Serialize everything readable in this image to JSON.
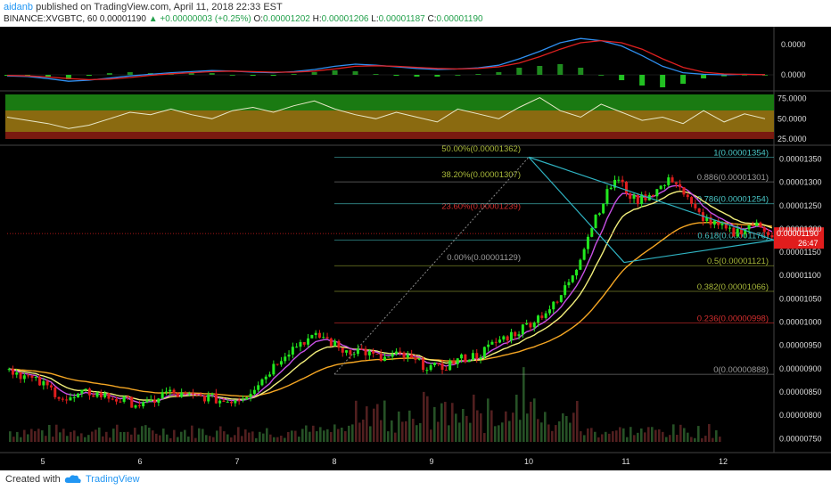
{
  "header": {
    "user": "aidanb",
    "published": "published on TradingView.com, April 11, 2018 22:33 EST",
    "symbol": "BINANCE:XVGBTC, 60",
    "last": "0.00001190",
    "change": "+0.00000003 (+0.25%)",
    "o_label": "O:",
    "o": "0.00001202",
    "h_label": "H:",
    "h": "0.00001206",
    "l_label": "L:",
    "l": "0.00001187",
    "c_label": "C:",
    "c": "0.00001190"
  },
  "footer": {
    "created": "Created with",
    "brand": "TradingView"
  },
  "colors": {
    "bg": "#000000",
    "up": "#22e81f",
    "down": "#e01d1d",
    "fib_teal": "#49c7c7",
    "fib_olive": "#a8b83a",
    "fib_red": "#d42f2f",
    "ema_orange": "#f5a623",
    "ema_yellow": "#f2ef7b",
    "ema_purple": "#c850e6",
    "triangle": "#2fb3c2",
    "macd_blue": "#2f8ff0",
    "macd_red": "#e02020",
    "price_tag": "#e01d1d"
  },
  "chart_data": [
    {
      "type": "line",
      "name_panel": "MACD",
      "y_ticks": [
        "0.0000",
        "0.0000"
      ],
      "series": [
        {
          "values": [
            -0.1,
            -0.15,
            -0.35,
            -0.6,
            -0.5,
            -0.3,
            -0.1,
            0.05,
            0.2,
            0.3,
            0.4,
            0.35,
            0.25,
            0.2,
            0.3,
            0.5,
            0.8,
            1.0,
            0.9,
            0.75,
            0.6,
            0.5,
            0.55,
            0.65,
            0.9,
            1.5,
            2.2,
            3.0,
            3.4,
            3.2,
            2.7,
            1.8,
            0.8,
            0.2,
            0.05,
            0.0,
            0.05,
            0.02
          ]
        },
        {
          "values": [
            -0.05,
            -0.1,
            -0.2,
            -0.35,
            -0.45,
            -0.4,
            -0.25,
            -0.05,
            0.1,
            0.2,
            0.3,
            0.35,
            0.3,
            0.25,
            0.25,
            0.35,
            0.55,
            0.8,
            0.85,
            0.8,
            0.7,
            0.6,
            0.55,
            0.6,
            0.75,
            1.1,
            1.7,
            2.4,
            3.0,
            3.2,
            3.0,
            2.4,
            1.5,
            0.7,
            0.25,
            0.08,
            0.04,
            0.02
          ]
        }
      ]
    },
    {
      "type": "line",
      "name_panel": "RSI",
      "y_ticks": [
        "75.0000",
        "50.0000",
        "25.0000"
      ],
      "ylim": [
        25,
        80
      ],
      "values": [
        52,
        48,
        44,
        38,
        42,
        50,
        58,
        55,
        62,
        55,
        50,
        60,
        64,
        58,
        66,
        72,
        62,
        55,
        50,
        58,
        52,
        46,
        62,
        56,
        50,
        64,
        76,
        60,
        52,
        68,
        58,
        48,
        52,
        44,
        60,
        46,
        56,
        50
      ]
    },
    {
      "type": "line",
      "name_panel": "price",
      "y_ticks": [
        "0.00001350",
        "0.00001300",
        "0.00001250",
        "0.00001200",
        "0.00001150",
        "0.00001100",
        "0.00001050",
        "0.00001000",
        "0.00000950",
        "0.00000900",
        "0.00000850",
        "0.00000800",
        "0.00000750"
      ],
      "x_ticks": [
        "5",
        "6",
        "7",
        "8",
        "9",
        "10",
        "11",
        "12"
      ],
      "ylim": [
        7.2e-06,
        1.37e-05
      ],
      "price_label": "0.00001190",
      "countdown": "26:47",
      "fib_levels": [
        {
          "label": "50.00%(0.00001362)",
          "value": 1.362e-05
        },
        {
          "label": "38.20%(0.00001307)",
          "value": 1.307e-05
        },
        {
          "label": "23.60%(0.00001239)",
          "value": 1.239e-05
        },
        {
          "label": "0.00%(0.00001129)",
          "value": 1.129e-05
        },
        {
          "label": "1(0.00001354)",
          "value": 1.354e-05
        },
        {
          "label": "0.886(0.00001301)",
          "value": 1.301e-05
        },
        {
          "label": "0.786(0.00001254)",
          "value": 1.254e-05
        },
        {
          "label": "0.618(0.00001176)",
          "value": 1.176e-05
        },
        {
          "label": "0.5(0.00001121)",
          "value": 1.121e-05
        },
        {
          "label": "0.382(0.00001066)",
          "value": 1.066e-05
        },
        {
          "label": "0.236(0.00000998)",
          "value": 9.98e-06
        },
        {
          "label": "0(0.00000888)",
          "value": 8.88e-06
        }
      ],
      "close_series": [
        9e-06,
        8.8e-06,
        8.6e-06,
        8.3e-06,
        8.5e-06,
        8.4e-06,
        8.3e-06,
        8.2e-06,
        8.5e-06,
        8.4e-06,
        8.4e-06,
        8.3e-06,
        8.4e-06,
        8.8e-06,
        9.3e-06,
        9.6e-06,
        9.7e-06,
        9.4e-06,
        9.4e-06,
        9.2e-06,
        9.3e-06,
        9.1e-06,
        9e-06,
        9.2e-06,
        9.3e-06,
        9.6e-06,
        9.8e-06,
        1.01e-05,
        1.04e-05,
        1.12e-05,
        1.23e-05,
        1.31e-05,
        1.26e-05,
        1.28e-05,
        1.31e-05,
        1.24e-05,
        1.21e-05,
        1.19e-05,
        1.21e-05,
        1.19e-05
      ]
    }
  ]
}
